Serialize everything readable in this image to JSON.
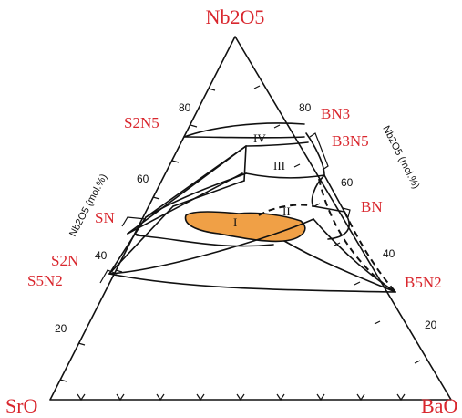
{
  "corners": {
    "top": "Nb2O5",
    "left": "SrO",
    "right": "BaO"
  },
  "phases": {
    "S2N5": "S2N5",
    "BN3": "BN3",
    "B3N5": "B3N5",
    "SN": "SN",
    "BN": "BN",
    "S2N": "S2N",
    "S5N2": "S5N2",
    "B5N2": "B5N2"
  },
  "regions": [
    "IV",
    "III",
    "I",
    "II"
  ],
  "axes": {
    "left_title": "Nb2O5 (mol.%)",
    "right_title": "Nb2O5 (mol.%)",
    "left_ticks": [
      "80",
      "60",
      "40",
      "20"
    ],
    "right_ticks": [
      "80",
      "60",
      "40",
      "20"
    ]
  },
  "colors": {
    "label_red": "#d9272e",
    "region_I_fill": "#f0a046",
    "line": "#111111"
  }
}
